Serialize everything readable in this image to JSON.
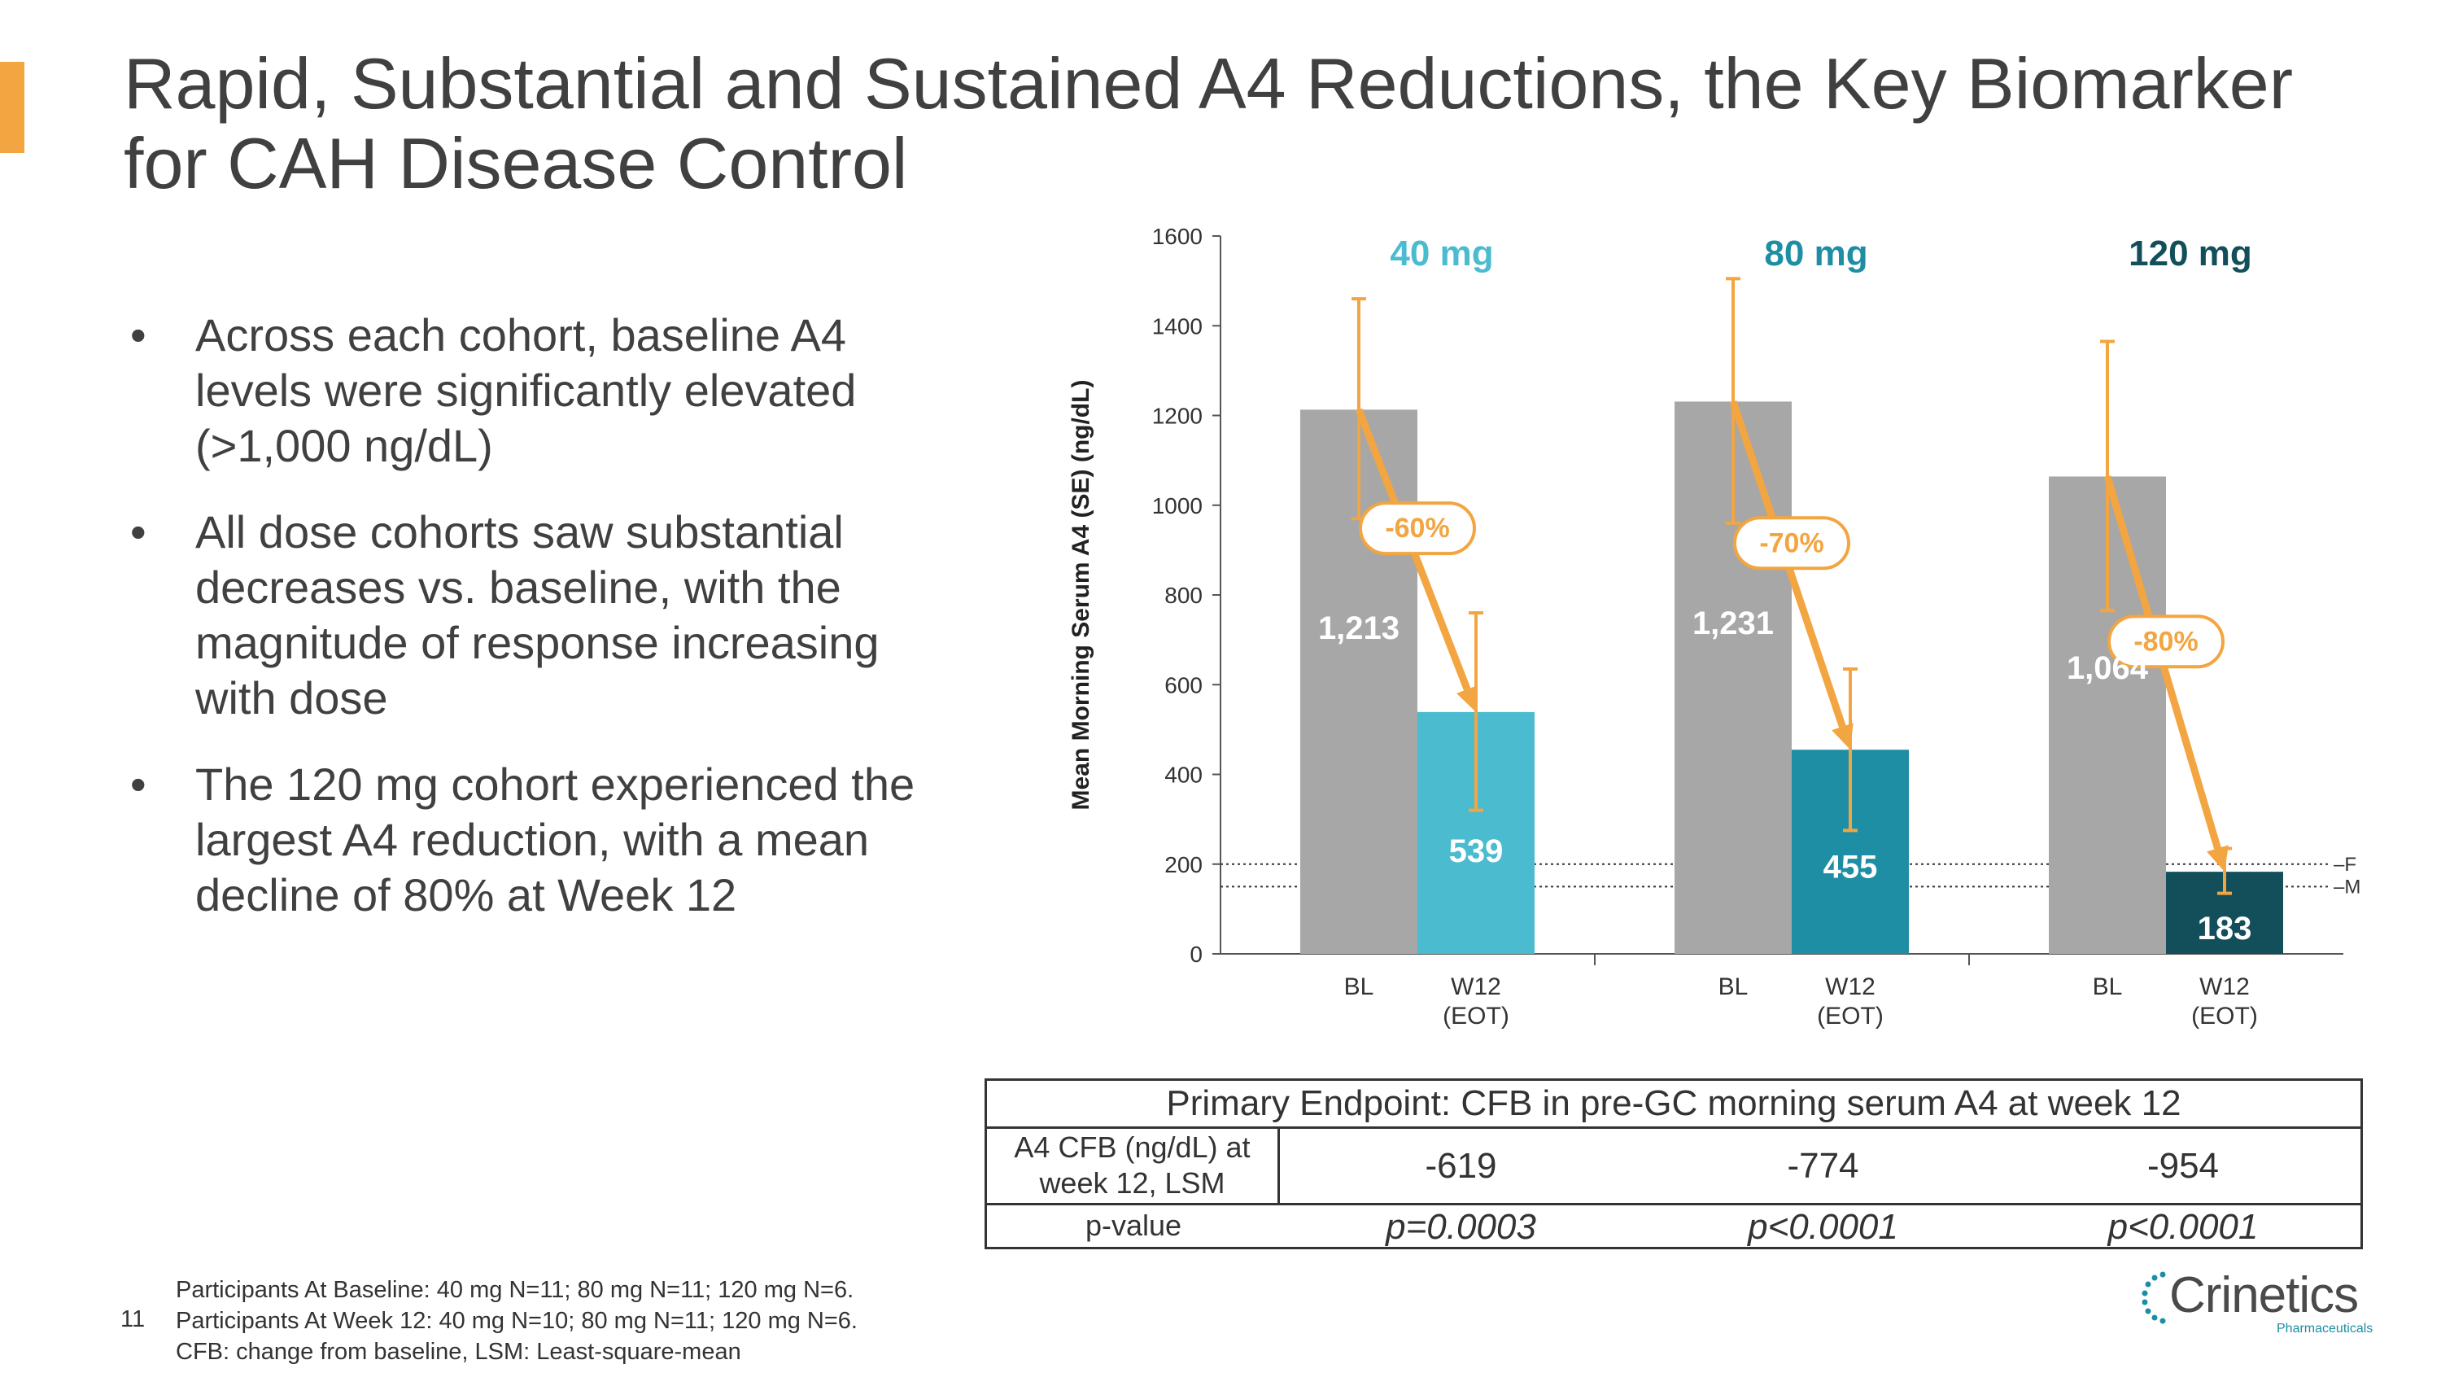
{
  "title": "Rapid, Substantial and Sustained A4 Reductions, the Key Biomarker for CAH Disease Control",
  "bullets": [
    "Across each cohort, baseline A4 levels were significantly elevated (>1,000 ng/dL)",
    "All dose cohorts saw substantial decreases vs. baseline, with the magnitude of response increasing with dose",
    "The 120 mg cohort experienced the largest A4 reduction, with a mean decline of 80% at Week 12"
  ],
  "bullet_symbol": "•",
  "chart_data": {
    "type": "bar",
    "ylabel": "Mean Morning Serum A4 (SE) (ng/dL)",
    "ylim": [
      0,
      1600
    ],
    "yticks": [
      0,
      200,
      400,
      600,
      800,
      1000,
      1200,
      1400,
      1600
    ],
    "cohorts": [
      {
        "name": "40 mg",
        "color": "#4BBBD0",
        "bl_label": "BL",
        "w12_label_1": "W12",
        "w12_label_2": "(EOT)",
        "bl": 1213,
        "bl_text": "1,213",
        "bl_err": [
          970,
          1460
        ],
        "w12": 539,
        "w12_text": "539",
        "w12_err": [
          320,
          760
        ],
        "change": "-60%"
      },
      {
        "name": "80 mg",
        "color": "#1E8EA4",
        "bl_label": "BL",
        "w12_label_1": "W12",
        "w12_label_2": "(EOT)",
        "bl": 1231,
        "bl_text": "1,231",
        "bl_err": [
          960,
          1505
        ],
        "w12": 455,
        "w12_text": "455",
        "w12_err": [
          275,
          635
        ],
        "change": "-70%"
      },
      {
        "name": "120 mg",
        "color": "#124F5A",
        "bl_label": "BL",
        "w12_label_1": "W12",
        "w12_label_2": "(EOT)",
        "bl": 1064,
        "bl_text": "1,064",
        "bl_err": [
          765,
          1365
        ],
        "w12": 183,
        "w12_text": "183",
        "w12_err": [
          135,
          235
        ],
        "change": "-80%"
      }
    ],
    "reference_lines": [
      {
        "label": "F ULN",
        "value": 200
      },
      {
        "label": "M ULN",
        "value": 150
      }
    ],
    "bl_color": "#A8A7A7",
    "accent_color": "#F2A541"
  },
  "table": {
    "header": "Primary Endpoint: CFB in pre-GC morning serum A4 at week 12",
    "row1_label_a": "A4 CFB (ng/dL) at",
    "row1_label_b": "week 12, LSM",
    "row1_values": [
      "-619",
      "-774",
      "-954"
    ],
    "row2_label": "p-value",
    "row2_values": [
      "p=0.0003",
      "p<0.0001",
      "p<0.0001"
    ]
  },
  "footnote": {
    "line1": "Participants At Baseline: 40 mg N=11; 80 mg N=11; 120 mg N=6.",
    "line2": "Participants At Week 12: 40 mg N=10; 80 mg N=11; 120 mg N=6.",
    "line3": "CFB: change from baseline, LSM: Least-square-mean"
  },
  "page_number": "11",
  "logo": {
    "name": "Crinetics",
    "sub": "Pharmaceuticals"
  }
}
